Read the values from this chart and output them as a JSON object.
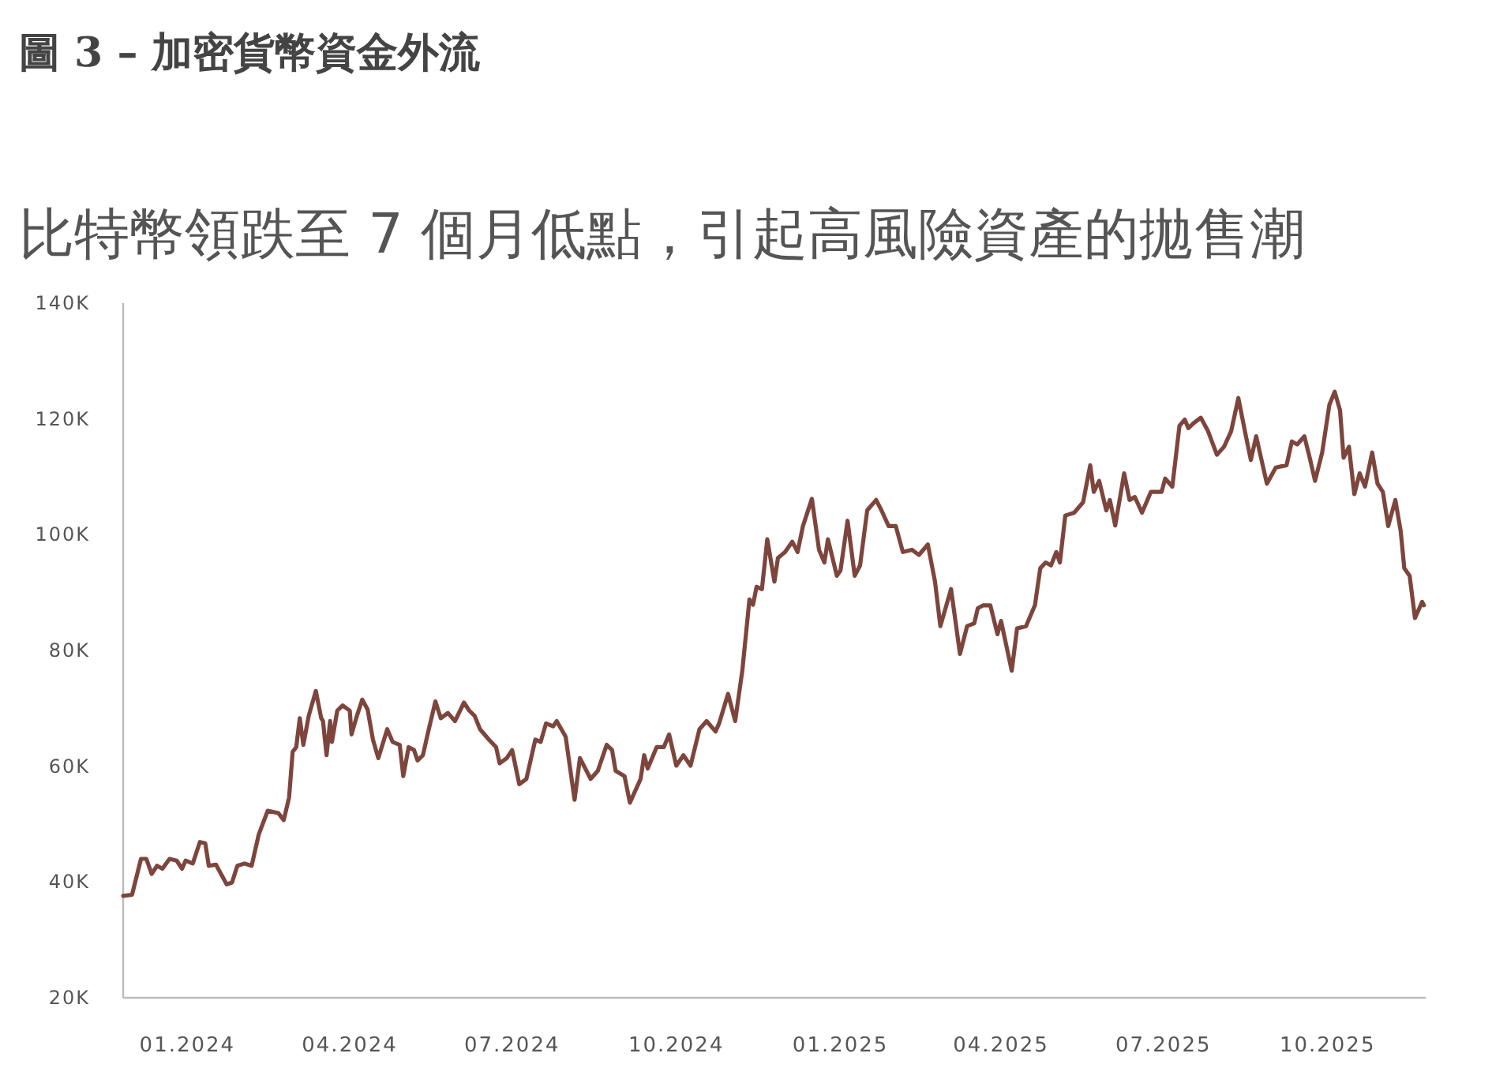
{
  "chart_data": {
    "type": "line",
    "title": "圖 3 – 加密貨幣資金外流",
    "subtitle": "比特幣領跌至 7 個月低點，引起高風險資產的拋售潮",
    "xlim": [
      "2023-11-26",
      "2025-11-25"
    ],
    "xticks": [
      {
        "value": "2024-01-01",
        "label": "01.2024"
      },
      {
        "value": "2024-04-01",
        "label": "04.2024"
      },
      {
        "value": "2024-07-01",
        "label": "07.2024"
      },
      {
        "value": "2024-10-01",
        "label": "10.2024"
      },
      {
        "value": "2025-01-01",
        "label": "01.2025"
      },
      {
        "value": "2025-04-01",
        "label": "04.2025"
      },
      {
        "value": "2025-07-01",
        "label": "07.2025"
      },
      {
        "value": "2025-10-01",
        "label": "10.2025"
      }
    ],
    "ylim": [
      20000,
      140000
    ],
    "yticks": [
      {
        "value": 20000,
        "label": "20K"
      },
      {
        "value": 40000,
        "label": "40K"
      },
      {
        "value": 60000,
        "label": "60K"
      },
      {
        "value": 80000,
        "label": "80K"
      },
      {
        "value": 100000,
        "label": "100K"
      },
      {
        "value": 120000,
        "label": "120K"
      },
      {
        "value": 140000,
        "label": "140K"
      }
    ],
    "grid": false,
    "series": [
      {
        "color": "#7d453c",
        "x": [
          "2023-11-26",
          "2023-12-01",
          "2023-12-06",
          "2023-12-09",
          "2023-12-12",
          "2023-12-15",
          "2023-12-18",
          "2023-12-22",
          "2023-12-26",
          "2023-12-29",
          "2023-12-31",
          "2024-01-04",
          "2024-01-08",
          "2024-01-11",
          "2024-01-13",
          "2024-01-17",
          "2024-01-23",
          "2024-01-26",
          "2024-01-29",
          "2024-02-02",
          "2024-02-06",
          "2024-02-10",
          "2024-02-15",
          "2024-02-21",
          "2024-02-24",
          "2024-02-27",
          "2024-02-29",
          "2024-03-02",
          "2024-03-04",
          "2024-03-06",
          "2024-03-09",
          "2024-03-13",
          "2024-03-16",
          "2024-03-17",
          "2024-03-19",
          "2024-03-21",
          "2024-03-22",
          "2024-03-25",
          "2024-03-28",
          "2024-04-01",
          "2024-04-02",
          "2024-04-05",
          "2024-04-08",
          "2024-04-11",
          "2024-04-14",
          "2024-04-17",
          "2024-04-22",
          "2024-04-25",
          "2024-04-29",
          "2024-05-01",
          "2024-05-04",
          "2024-05-07",
          "2024-05-09",
          "2024-05-12",
          "2024-05-15",
          "2024-05-19",
          "2024-05-22",
          "2024-05-26",
          "2024-05-30",
          "2024-06-04",
          "2024-06-07",
          "2024-06-10",
          "2024-06-13",
          "2024-06-18",
          "2024-06-22",
          "2024-06-24",
          "2024-06-28",
          "2024-07-01",
          "2024-07-05",
          "2024-07-09",
          "2024-07-14",
          "2024-07-17",
          "2024-07-20",
          "2024-07-24",
          "2024-07-26",
          "2024-07-31",
          "2024-08-05",
          "2024-08-08",
          "2024-08-14",
          "2024-08-18",
          "2024-08-23",
          "2024-08-26",
          "2024-08-28",
          "2024-09-02",
          "2024-09-05",
          "2024-09-11",
          "2024-09-13",
          "2024-09-15",
          "2024-09-20",
          "2024-09-24",
          "2024-09-27",
          "2024-10-01",
          "2024-10-05",
          "2024-10-09",
          "2024-10-14",
          "2024-10-18",
          "2024-10-23",
          "2024-10-25",
          "2024-10-30",
          "2024-11-03",
          "2024-11-07",
          "2024-11-11",
          "2024-11-13",
          "2024-11-15",
          "2024-11-18",
          "2024-11-21",
          "2024-11-25",
          "2024-11-27",
          "2024-12-01",
          "2024-12-05",
          "2024-12-08",
          "2024-12-11",
          "2024-12-16",
          "2024-12-20",
          "2024-12-23",
          "2024-12-25",
          "2024-12-30",
          "2025-01-01",
          "2025-01-05",
          "2025-01-09",
          "2025-01-12",
          "2025-01-16",
          "2025-01-21",
          "2025-01-24",
          "2025-01-28",
          "2025-02-01",
          "2025-02-05",
          "2025-02-10",
          "2025-02-14",
          "2025-02-19",
          "2025-02-23",
          "2025-02-26",
          "2025-03-04",
          "2025-03-09",
          "2025-03-13",
          "2025-03-17",
          "2025-03-19",
          "2025-03-22",
          "2025-03-26",
          "2025-03-30",
          "2025-04-01",
          "2025-04-07",
          "2025-04-10",
          "2025-04-15",
          "2025-04-20",
          "2025-04-23",
          "2025-04-26",
          "2025-04-29",
          "2025-05-02",
          "2025-05-04",
          "2025-05-07",
          "2025-05-12",
          "2025-05-17",
          "2025-05-21",
          "2025-05-23",
          "2025-05-26",
          "2025-05-30",
          "2025-06-01",
          "2025-06-04",
          "2025-06-09",
          "2025-06-12",
          "2025-06-15",
          "2025-06-19",
          "2025-06-24",
          "2025-06-30",
          "2025-07-02",
          "2025-07-06",
          "2025-07-10",
          "2025-07-13",
          "2025-07-15",
          "2025-07-18",
          "2025-07-22",
          "2025-07-26",
          "2025-07-31",
          "2025-08-04",
          "2025-08-08",
          "2025-08-12",
          "2025-08-16",
          "2025-08-19",
          "2025-08-22",
          "2025-08-25",
          "2025-08-28",
          "2025-09-02",
          "2025-09-08",
          "2025-09-11",
          "2025-09-14",
          "2025-09-18",
          "2025-09-21",
          "2025-09-24",
          "2025-09-28",
          "2025-10-02",
          "2025-10-05",
          "2025-10-08",
          "2025-10-10",
          "2025-10-13",
          "2025-10-16",
          "2025-10-19",
          "2025-10-22",
          "2025-10-26",
          "2025-10-29",
          "2025-11-01",
          "2025-11-04",
          "2025-11-08",
          "2025-11-11",
          "2025-11-13",
          "2025-11-16",
          "2025-11-19",
          "2025-11-23",
          "2025-11-24"
        ],
        "values": [
          37600,
          37800,
          44000,
          44000,
          41400,
          42800,
          42300,
          44000,
          43700,
          42300,
          43700,
          43200,
          46900,
          46700,
          42800,
          43000,
          39600,
          39900,
          42800,
          43200,
          42800,
          48200,
          52300,
          51900,
          50700,
          54600,
          62500,
          63300,
          68300,
          63700,
          68700,
          73000,
          68300,
          67800,
          61900,
          67800,
          64200,
          69600,
          70500,
          69600,
          65500,
          68700,
          71500,
          69800,
          64600,
          61400,
          66400,
          64200,
          63700,
          58300,
          63300,
          62800,
          61000,
          61900,
          66000,
          71200,
          68300,
          69200,
          67800,
          71000,
          69600,
          68700,
          66400,
          64600,
          63300,
          60500,
          61400,
          62800,
          56900,
          57800,
          64600,
          64200,
          67400,
          66900,
          67800,
          65100,
          54200,
          61400,
          57800,
          59200,
          63700,
          62800,
          59200,
          58300,
          53700,
          57800,
          61900,
          59600,
          63300,
          63300,
          65500,
          60100,
          61900,
          60100,
          66400,
          67800,
          66000,
          67400,
          72500,
          67800,
          76500,
          88800,
          87900,
          91000,
          90600,
          99200,
          91900,
          96000,
          97000,
          98800,
          97000,
          101500,
          106200,
          97400,
          95200,
          99200,
          92900,
          93800,
          102400,
          92900,
          94700,
          104200,
          106000,
          104200,
          101500,
          101500,
          97000,
          97400,
          96500,
          98300,
          91900,
          84200,
          90600,
          79400,
          84200,
          84700,
          87300,
          87800,
          87800,
          82800,
          85100,
          76500,
          83800,
          84200,
          87800,
          94200,
          95200,
          94700,
          97000,
          95200,
          103300,
          103800,
          105600,
          112000,
          107400,
          109300,
          104200,
          106000,
          101600,
          110600,
          106000,
          106500,
          103800,
          107400,
          107400,
          109700,
          108300,
          118800,
          119900,
          118400,
          119300,
          120200,
          117900,
          113800,
          115200,
          117900,
          123600,
          117400,
          112900,
          117000,
          112900,
          108800,
          111600,
          112000,
          116100,
          115600,
          117000,
          113300,
          109300,
          114200,
          122400,
          124700,
          121500,
          113300,
          115200,
          107000,
          110600,
          108300,
          114200,
          108800,
          107400,
          101500,
          106000,
          100600,
          94200,
          92900,
          85600,
          88400,
          87800
        ]
      }
    ]
  }
}
